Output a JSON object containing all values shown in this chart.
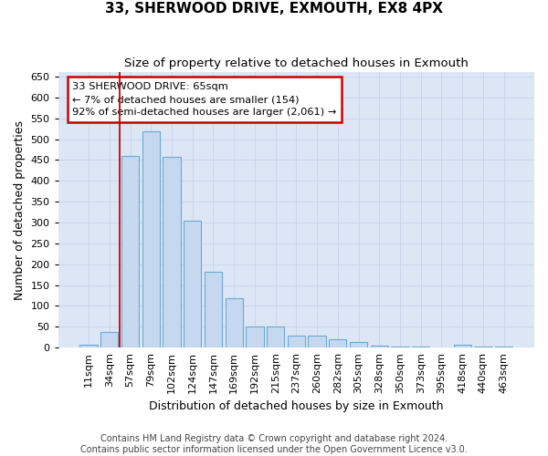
{
  "title": "33, SHERWOOD DRIVE, EXMOUTH, EX8 4PX",
  "subtitle": "Size of property relative to detached houses in Exmouth",
  "xlabel": "Distribution of detached houses by size in Exmouth",
  "ylabel": "Number of detached properties",
  "categories": [
    "11sqm",
    "34sqm",
    "57sqm",
    "79sqm",
    "102sqm",
    "124sqm",
    "147sqm",
    "169sqm",
    "192sqm",
    "215sqm",
    "237sqm",
    "260sqm",
    "282sqm",
    "305sqm",
    "328sqm",
    "350sqm",
    "373sqm",
    "395sqm",
    "418sqm",
    "440sqm",
    "463sqm"
  ],
  "values": [
    7,
    37,
    460,
    518,
    457,
    305,
    181,
    119,
    50,
    50,
    29,
    28,
    20,
    13,
    5,
    3,
    2,
    1,
    6,
    2,
    3
  ],
  "bar_color": "#c5d8ef",
  "bar_edge_color": "#6aaad4",
  "vline_color": "#cc0000",
  "annotation_text": "33 SHERWOOD DRIVE: 65sqm\n← 7% of detached houses are smaller (154)\n92% of semi-detached houses are larger (2,061) →",
  "annotation_box_color": "#ffffff",
  "annotation_box_edge": "#cc0000",
  "ylim": [
    0,
    660
  ],
  "yticks": [
    0,
    50,
    100,
    150,
    200,
    250,
    300,
    350,
    400,
    450,
    500,
    550,
    600,
    650
  ],
  "grid_color": "#c8d4e8",
  "background_color": "#dce6f5",
  "footer_line1": "Contains HM Land Registry data © Crown copyright and database right 2024.",
  "footer_line2": "Contains public sector information licensed under the Open Government Licence v3.0.",
  "title_fontsize": 11,
  "subtitle_fontsize": 9.5,
  "axis_label_fontsize": 9,
  "tick_fontsize": 8,
  "footer_fontsize": 7
}
